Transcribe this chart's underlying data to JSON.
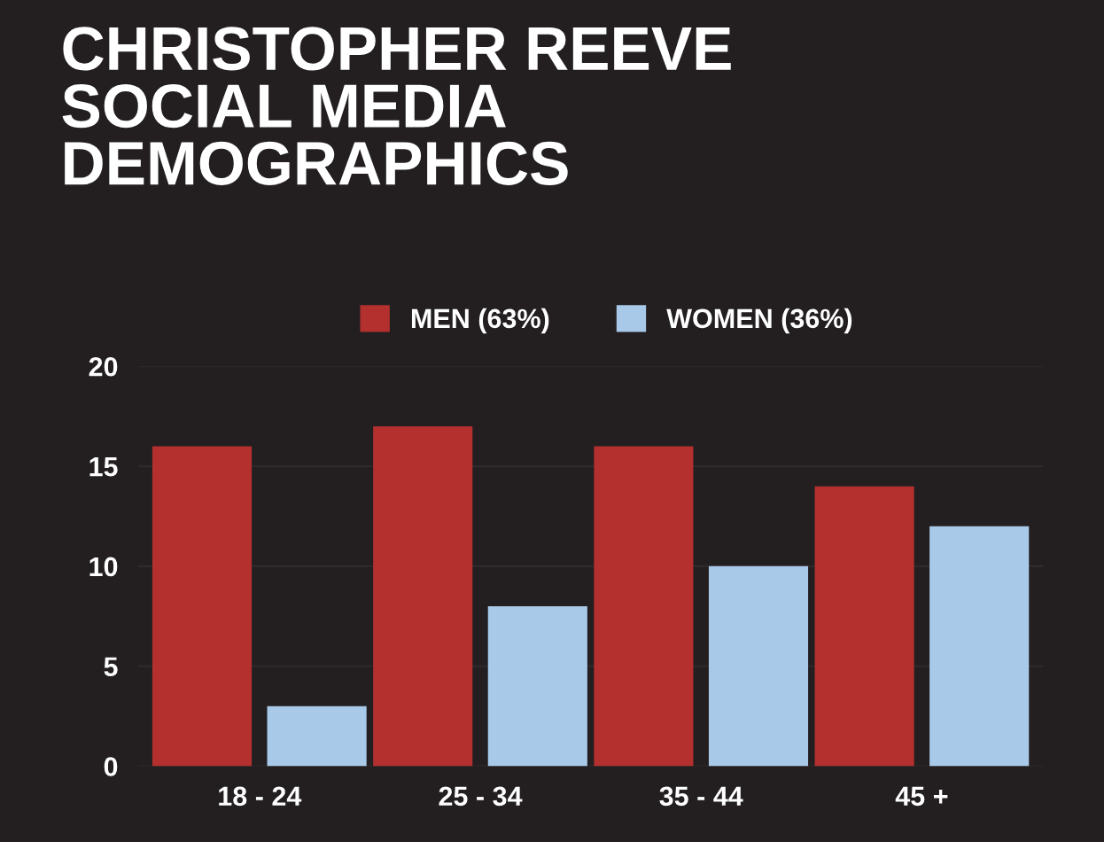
{
  "chart_data": {
    "type": "bar",
    "title": "CHRISTOPHER REEVE\nSOCIAL MEDIA\nDEMOGRAPHICS",
    "categories": [
      "18 - 24",
      "25 - 34",
      "35 - 44",
      "45 +"
    ],
    "series": [
      {
        "name": "MEN (63%)",
        "color": "#b3302f",
        "values": [
          16,
          17,
          16,
          14
        ]
      },
      {
        "name": "WOMEN (36%)",
        "color": "#a9c9e9",
        "values": [
          3,
          8,
          10,
          12
        ]
      }
    ],
    "ylim": [
      0,
      20
    ],
    "yticks": [
      0,
      5,
      10,
      15,
      20
    ],
    "grid": "y",
    "legend": "top"
  }
}
